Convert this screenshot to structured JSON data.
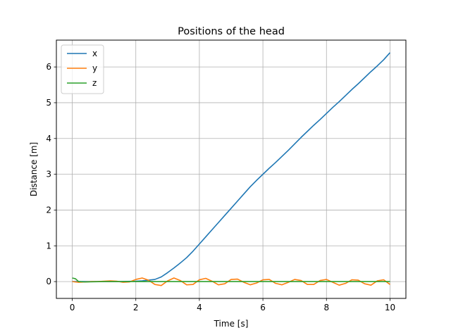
{
  "chart_data": {
    "type": "line",
    "title": "Positions of the head",
    "xlabel": "Time [s]",
    "ylabel": "Distance [m]",
    "xlim": [
      -0.5,
      10.5
    ],
    "ylim": [
      -0.47,
      6.75
    ],
    "xticks": [
      0,
      2,
      4,
      6,
      8,
      10
    ],
    "yticks": [
      0,
      1,
      2,
      3,
      4,
      5,
      6
    ],
    "grid": true,
    "legend_position": "top-left",
    "series": [
      {
        "name": "x",
        "color": "#1f77b4",
        "points": [
          [
            0,
            0
          ],
          [
            0.5,
            0
          ],
          [
            1,
            0
          ],
          [
            1.5,
            0
          ],
          [
            2,
            0.01
          ],
          [
            2.2,
            0.02
          ],
          [
            2.4,
            0.04
          ],
          [
            2.6,
            0.06
          ],
          [
            2.8,
            0.13
          ],
          [
            3.0,
            0.25
          ],
          [
            3.2,
            0.38
          ],
          [
            3.4,
            0.52
          ],
          [
            3.6,
            0.67
          ],
          [
            3.8,
            0.85
          ],
          [
            4.0,
            1.05
          ],
          [
            4.2,
            1.25
          ],
          [
            4.4,
            1.45
          ],
          [
            4.6,
            1.65
          ],
          [
            4.8,
            1.85
          ],
          [
            5.0,
            2.05
          ],
          [
            5.2,
            2.25
          ],
          [
            5.4,
            2.45
          ],
          [
            5.6,
            2.65
          ],
          [
            5.8,
            2.83
          ],
          [
            6.0,
            3.0
          ],
          [
            6.2,
            3.17
          ],
          [
            6.4,
            3.33
          ],
          [
            6.6,
            3.5
          ],
          [
            6.8,
            3.67
          ],
          [
            7.0,
            3.85
          ],
          [
            7.2,
            4.03
          ],
          [
            7.4,
            4.2
          ],
          [
            7.6,
            4.37
          ],
          [
            7.8,
            4.53
          ],
          [
            8.0,
            4.7
          ],
          [
            8.2,
            4.87
          ],
          [
            8.4,
            5.03
          ],
          [
            8.6,
            5.2
          ],
          [
            8.8,
            5.37
          ],
          [
            9.0,
            5.53
          ],
          [
            9.2,
            5.7
          ],
          [
            9.4,
            5.87
          ],
          [
            9.6,
            6.03
          ],
          [
            9.8,
            6.2
          ],
          [
            10.0,
            6.4
          ]
        ]
      },
      {
        "name": "y",
        "color": "#ff7f0e",
        "points": [
          [
            0,
            0
          ],
          [
            0.2,
            -0.02
          ],
          [
            0.4,
            -0.01
          ],
          [
            0.6,
            0
          ],
          [
            0.8,
            0
          ],
          [
            1.0,
            0.01
          ],
          [
            1.2,
            0.02
          ],
          [
            1.4,
            0.01
          ],
          [
            1.6,
            -0.02
          ],
          [
            1.8,
            -0.01
          ],
          [
            2.0,
            0.06
          ],
          [
            2.2,
            0.1
          ],
          [
            2.4,
            0.04
          ],
          [
            2.6,
            -0.08
          ],
          [
            2.8,
            -0.11
          ],
          [
            3.0,
            0.02
          ],
          [
            3.2,
            0.1
          ],
          [
            3.4,
            0.03
          ],
          [
            3.6,
            -0.09
          ],
          [
            3.8,
            -0.08
          ],
          [
            4.0,
            0.05
          ],
          [
            4.2,
            0.09
          ],
          [
            4.4,
            0.01
          ],
          [
            4.6,
            -0.09
          ],
          [
            4.8,
            -0.06
          ],
          [
            5.0,
            0.06
          ],
          [
            5.2,
            0.07
          ],
          [
            5.4,
            -0.02
          ],
          [
            5.6,
            -0.09
          ],
          [
            5.8,
            -0.04
          ],
          [
            6.0,
            0.05
          ],
          [
            6.2,
            0.06
          ],
          [
            6.4,
            -0.05
          ],
          [
            6.6,
            -0.09
          ],
          [
            6.8,
            -0.02
          ],
          [
            7.0,
            0.06
          ],
          [
            7.2,
            0.03
          ],
          [
            7.4,
            -0.08
          ],
          [
            7.6,
            -0.08
          ],
          [
            7.8,
            0.03
          ],
          [
            8.0,
            0.06
          ],
          [
            8.2,
            -0.02
          ],
          [
            8.4,
            -0.1
          ],
          [
            8.6,
            -0.05
          ],
          [
            8.8,
            0.05
          ],
          [
            9.0,
            0.04
          ],
          [
            9.2,
            -0.06
          ],
          [
            9.4,
            -0.1
          ],
          [
            9.6,
            0.02
          ],
          [
            9.8,
            0.05
          ],
          [
            10.0,
            -0.08
          ]
        ]
      },
      {
        "name": "z",
        "color": "#2ca02c",
        "points": [
          [
            0,
            0.1
          ],
          [
            0.1,
            0.08
          ],
          [
            0.2,
            0.0
          ],
          [
            0.4,
            -0.01
          ],
          [
            1,
            0
          ],
          [
            2,
            0
          ],
          [
            3,
            0
          ],
          [
            4,
            0
          ],
          [
            5,
            0
          ],
          [
            6,
            0
          ],
          [
            7,
            0
          ],
          [
            8,
            0
          ],
          [
            9,
            0
          ],
          [
            10,
            0
          ]
        ]
      }
    ]
  }
}
